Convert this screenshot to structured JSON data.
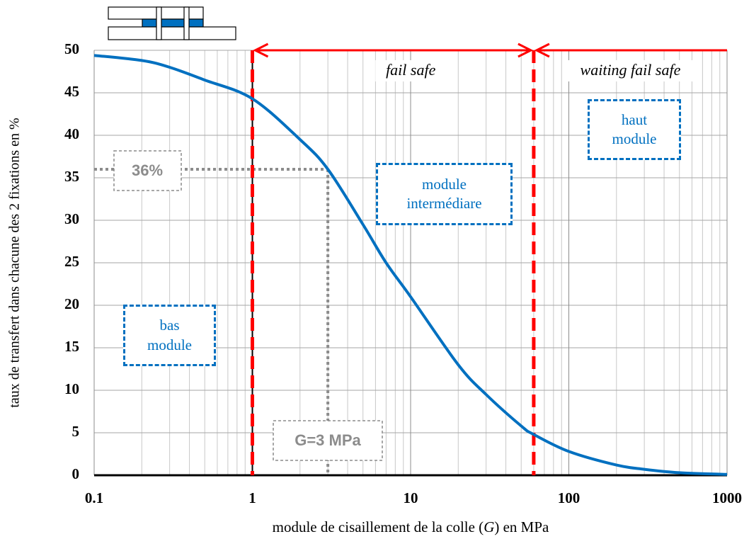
{
  "chart_data": {
    "type": "line",
    "xscale": "log",
    "x": [
      0.1,
      0.2,
      0.3,
      0.5,
      1,
      2,
      3,
      5,
      7,
      10,
      20,
      30,
      50,
      60,
      100,
      200,
      300,
      500,
      1000
    ],
    "series": [
      {
        "color": "#0070c0",
        "values": [
          49.4,
          48.8,
          48,
          46.5,
          44.3,
          39.5,
          36,
          29.5,
          25,
          21,
          13,
          9.5,
          5.8,
          4.8,
          2.8,
          1.2,
          0.7,
          0.3,
          0.1
        ]
      }
    ],
    "xlim": [
      0.1,
      1000
    ],
    "xticks": [
      0.1,
      1,
      10,
      100,
      1000
    ],
    "ylim": [
      0,
      50
    ],
    "yticks": [
      0,
      5,
      10,
      15,
      20,
      25,
      30,
      35,
      40,
      45,
      50
    ],
    "grid": true,
    "xlabel": [
      "module de cisaillement de la colle  (",
      "G",
      ") en MPa"
    ],
    "ylabel": "taux de transfert  dans chacune des 2 fixations  en %",
    "regions": [
      {
        "label": "fail safe",
        "from": 1,
        "to": 60,
        "color": "#ff0000"
      },
      {
        "label": "waiting fail safe",
        "from": 60,
        "to": 1000,
        "color": "#ff0000"
      }
    ],
    "reference": {
      "x": 3,
      "y": 36,
      "xlabel": "G=3 MPa",
      "ylabel": "36%",
      "color": "#8c8c8c"
    },
    "boxes": [
      {
        "lines": [
          "haut",
          "module"
        ]
      },
      {
        "lines": [
          "module",
          "intermédiare"
        ]
      },
      {
        "lines": [
          "bas",
          "module"
        ]
      }
    ]
  }
}
